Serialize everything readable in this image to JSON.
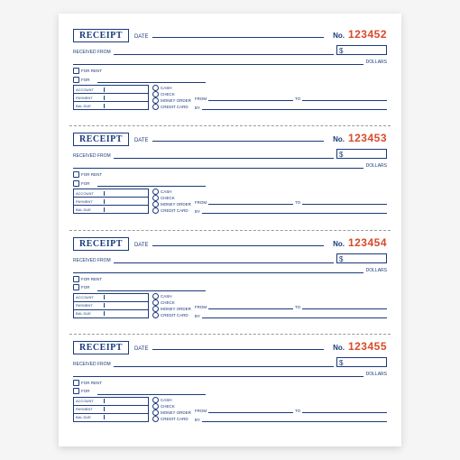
{
  "colors": {
    "ink": "#1a3a7a",
    "number": "#d94a2a",
    "paper": "#ffffff",
    "background": "#f5f5f5"
  },
  "title": "RECEIPT",
  "labels": {
    "date": "DATE",
    "no": "No.",
    "received_from": "RECEIVED FROM",
    "dollar_sign": "$",
    "dollars": "DOLLARS",
    "for_rent": "FOR RENT",
    "for": "FOR",
    "account": "ACCOUNT",
    "payment": "PAYMENT",
    "bal_due": "BAL DUE",
    "cash": "CASH",
    "check": "CHECK",
    "money_order": "MONEY ORDER",
    "credit_card": "CREDIT CARD",
    "from": "FROM",
    "to": "TO",
    "by": "BY"
  },
  "receipts": [
    {
      "number": "123452"
    },
    {
      "number": "123453"
    },
    {
      "number": "123454"
    },
    {
      "number": "123455"
    }
  ]
}
